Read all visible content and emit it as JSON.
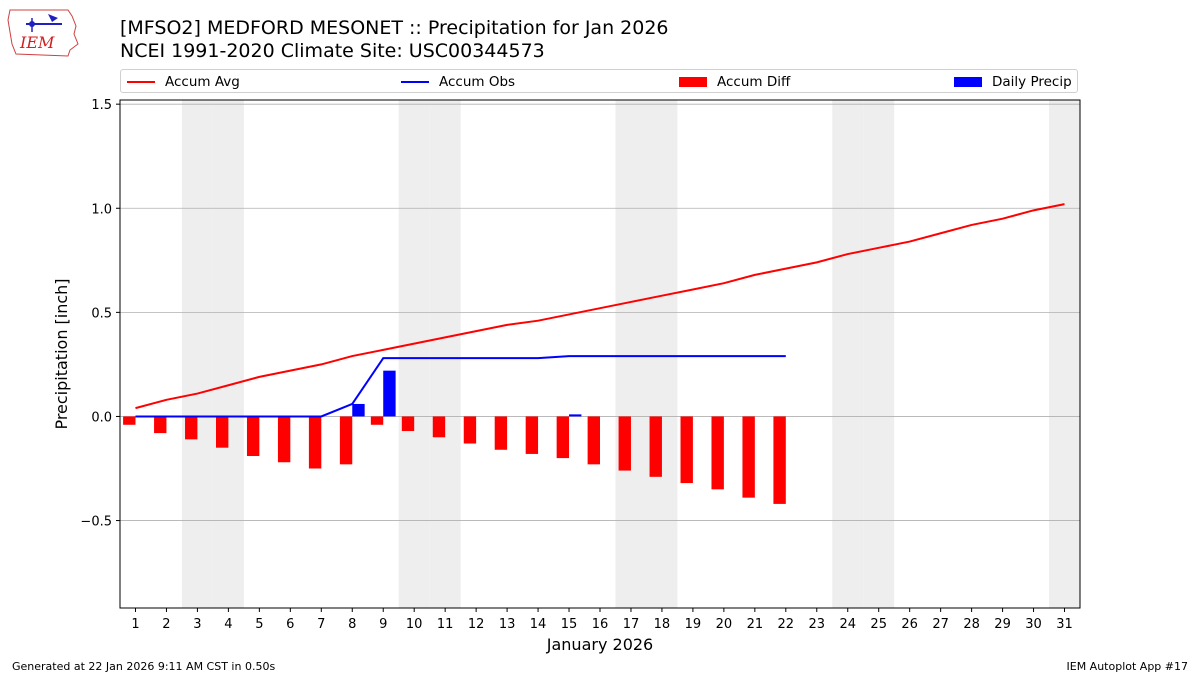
{
  "header": {
    "title_line1": "[MFSO2] MEDFORD MESONET :: Precipitation for Jan 2026",
    "title_line2": "NCEI 1991-2020 Climate Site: USC00344573",
    "logo_text": "IEM"
  },
  "legend": {
    "accum_avg": "Accum Avg",
    "accum_obs": "Accum Obs",
    "accum_diff": "Accum Diff",
    "daily_precip": "Daily Precip"
  },
  "footer": {
    "generated": "Generated at 22 Jan 2026 9:11 AM CST in 0.50s",
    "app": "IEM Autoplot App #17"
  },
  "colors": {
    "accum_avg": "#ff0000",
    "accum_obs": "#0000ff",
    "accum_diff": "#ff0000",
    "daily_precip": "#0000ff",
    "weekend_shade": "#eeeeee",
    "grid": "#b0b0b0"
  },
  "chart_data": {
    "type": "bar",
    "xlabel": "January 2026",
    "ylabel": "Precipitation [inch]",
    "xlim": [
      0.5,
      31.5
    ],
    "ylim": [
      -0.92,
      1.52
    ],
    "yticks": [
      -0.5,
      0.0,
      0.5,
      1.0,
      1.5
    ],
    "ytick_labels": [
      "−0.5",
      "0.0",
      "0.5",
      "1.0",
      "1.5"
    ],
    "grid": "horizontal",
    "legend_position": "top",
    "days": [
      1,
      2,
      3,
      4,
      5,
      6,
      7,
      8,
      9,
      10,
      11,
      12,
      13,
      14,
      15,
      16,
      17,
      18,
      19,
      20,
      21,
      22,
      23,
      24,
      25,
      26,
      27,
      28,
      29,
      30,
      31
    ],
    "weekend_days": [
      3,
      4,
      10,
      11,
      17,
      18,
      24,
      25,
      31
    ],
    "series": [
      {
        "name": "Accum Avg",
        "kind": "line",
        "x": [
          1,
          2,
          3,
          4,
          5,
          6,
          7,
          8,
          9,
          10,
          11,
          12,
          13,
          14,
          15,
          16,
          17,
          18,
          19,
          20,
          21,
          22,
          23,
          24,
          25,
          26,
          27,
          28,
          29,
          30,
          31
        ],
        "values": [
          0.04,
          0.08,
          0.11,
          0.15,
          0.19,
          0.22,
          0.25,
          0.29,
          0.32,
          0.35,
          0.38,
          0.41,
          0.44,
          0.46,
          0.49,
          0.52,
          0.55,
          0.58,
          0.61,
          0.64,
          0.68,
          0.71,
          0.74,
          0.78,
          0.81,
          0.84,
          0.88,
          0.92,
          0.95,
          0.99,
          1.02
        ]
      },
      {
        "name": "Accum Obs",
        "kind": "line",
        "x": [
          1,
          2,
          3,
          4,
          5,
          6,
          7,
          8,
          9,
          10,
          11,
          12,
          13,
          14,
          15,
          16,
          17,
          18,
          19,
          20,
          21,
          22
        ],
        "values": [
          0.0,
          0.0,
          0.0,
          0.0,
          0.0,
          0.0,
          0.0,
          0.06,
          0.28,
          0.28,
          0.28,
          0.28,
          0.28,
          0.28,
          0.29,
          0.29,
          0.29,
          0.29,
          0.29,
          0.29,
          0.29,
          0.29
        ]
      },
      {
        "name": "Accum Diff",
        "kind": "bar",
        "x": [
          1,
          2,
          3,
          4,
          5,
          6,
          7,
          8,
          9,
          10,
          11,
          12,
          13,
          14,
          15,
          16,
          17,
          18,
          19,
          20,
          21,
          22
        ],
        "values": [
          -0.04,
          -0.08,
          -0.11,
          -0.15,
          -0.19,
          -0.22,
          -0.25,
          -0.23,
          -0.04,
          -0.07,
          -0.1,
          -0.13,
          -0.16,
          -0.18,
          -0.2,
          -0.23,
          -0.26,
          -0.29,
          -0.32,
          -0.35,
          -0.39,
          -0.42
        ]
      },
      {
        "name": "Daily Precip",
        "kind": "bar",
        "x": [
          1,
          2,
          3,
          4,
          5,
          6,
          7,
          8,
          9,
          10,
          11,
          12,
          13,
          14,
          15,
          16,
          17,
          18,
          19,
          20,
          21,
          22
        ],
        "values": [
          0,
          0,
          0,
          0,
          0,
          0,
          0,
          0.06,
          0.22,
          0,
          0,
          0,
          0,
          0,
          0.01,
          0,
          0,
          0,
          0,
          0,
          0,
          0
        ]
      }
    ]
  }
}
